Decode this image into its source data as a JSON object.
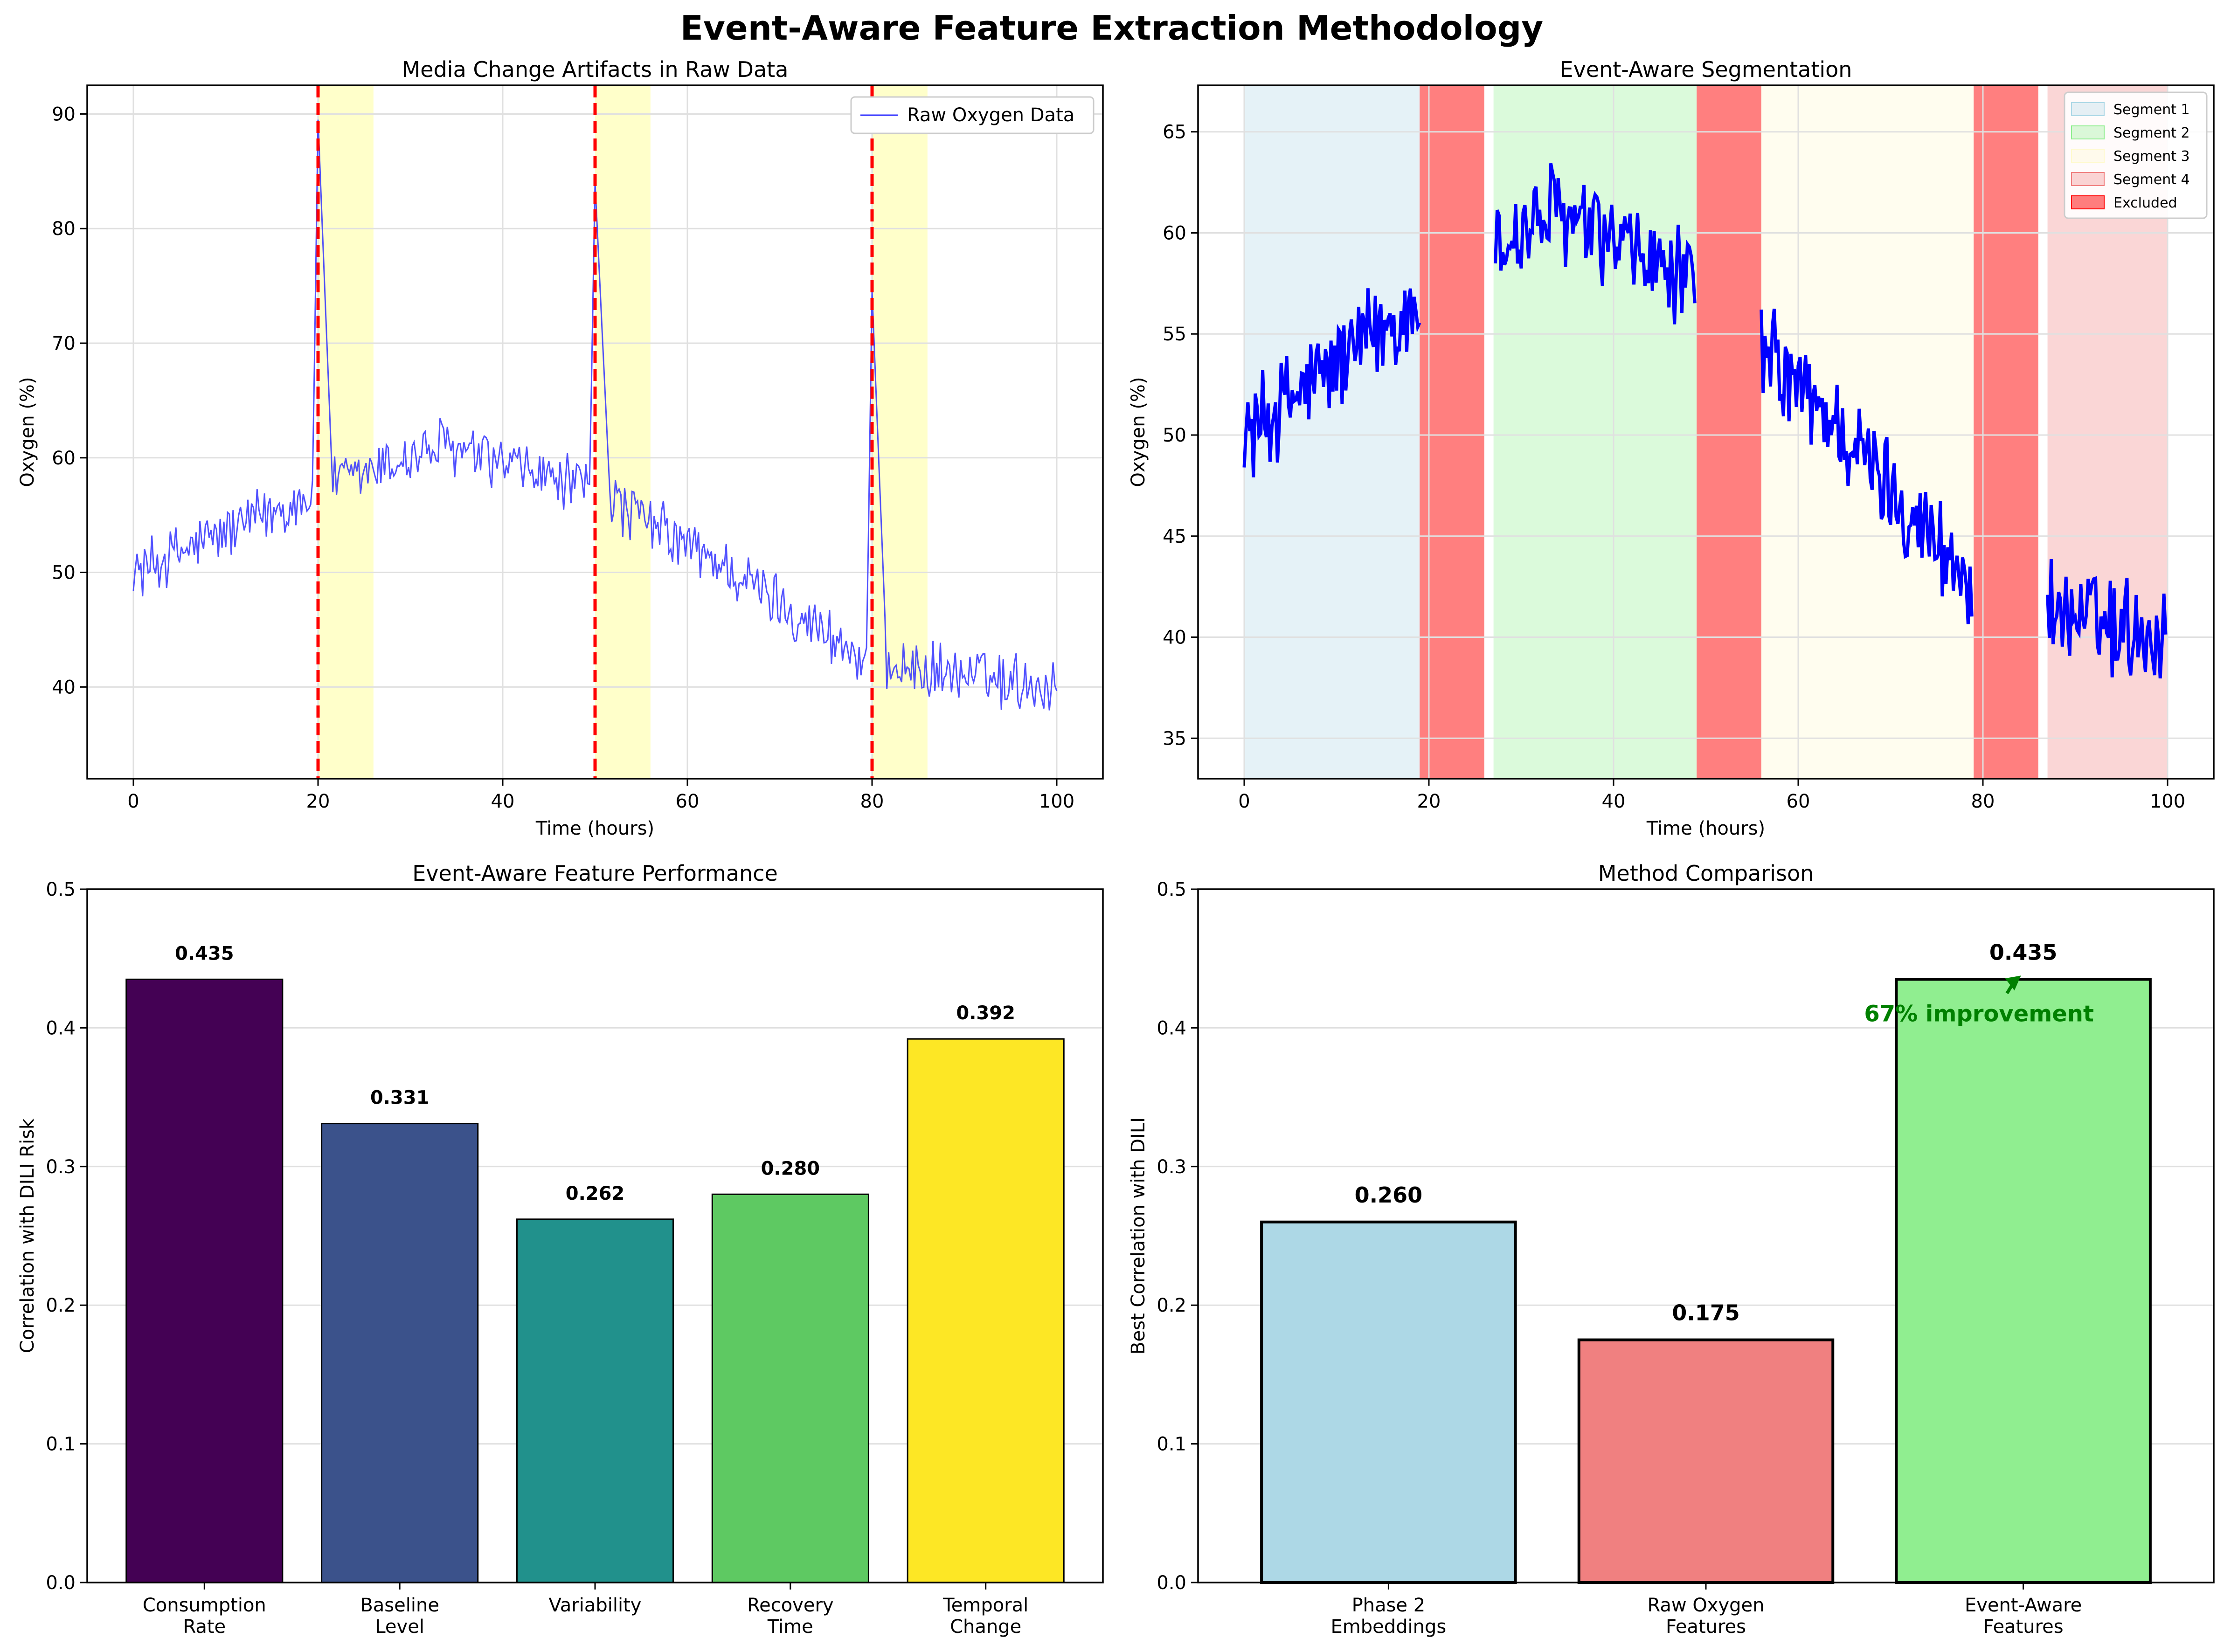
{
  "figure": {
    "title": "Event-Aware Feature Extraction Methodology"
  },
  "chart_data": [
    {
      "id": "raw",
      "type": "line",
      "title": "Media Change Artifacts in Raw Data",
      "xlabel": "Time (hours)",
      "ylabel": "Oxygen (%)",
      "xlim": [
        -5,
        105
      ],
      "ylim": [
        32,
        92.5
      ],
      "xticks": [
        0,
        20,
        40,
        60,
        80,
        100
      ],
      "yticks": [
        40,
        50,
        60,
        70,
        80,
        90
      ],
      "grid": true,
      "legend": {
        "position": "top-right",
        "entries": [
          "Raw Oxygen Data"
        ]
      },
      "series": [
        {
          "name": "Raw Oxygen Data",
          "color": "#3333ff"
        }
      ],
      "media_change_times": [
        20,
        50,
        80
      ],
      "post_event_windows": [
        [
          20,
          26
        ],
        [
          50,
          56
        ],
        [
          80,
          86
        ]
      ],
      "trend_anchors": [
        [
          0,
          50
        ],
        [
          20,
          57
        ],
        [
          33,
          61
        ],
        [
          50,
          57
        ],
        [
          65,
          50
        ],
        [
          80,
          42
        ],
        [
          100,
          40
        ]
      ],
      "spike_peaks": [
        [
          20,
          89.5
        ],
        [
          50,
          84
        ],
        [
          80,
          74.5
        ]
      ],
      "noise_amplitude": 3.0,
      "sample_interval": 0.2
    },
    {
      "id": "seg",
      "type": "line",
      "title": "Event-Aware Segmentation",
      "xlabel": "Time (hours)",
      "ylabel": "Oxygen (%)",
      "xlim": [
        -5,
        105
      ],
      "ylim": [
        33,
        67.3
      ],
      "xticks": [
        0,
        20,
        40,
        60,
        80,
        100
      ],
      "yticks": [
        35,
        40,
        45,
        50,
        55,
        60,
        65
      ],
      "grid": true,
      "legend": {
        "position": "top-right",
        "entries": [
          "Segment 1",
          "Segment 2",
          "Segment 3",
          "Segment 4",
          "Excluded"
        ]
      },
      "segments": [
        {
          "name": "Segment 1",
          "range": [
            0,
            19
          ],
          "color": "#add8e6"
        },
        {
          "name": "Segment 2",
          "range": [
            27,
            49
          ],
          "color": "#90ee90"
        },
        {
          "name": "Segment 3",
          "range": [
            56,
            79
          ],
          "color": "#fffacd"
        },
        {
          "name": "Segment 4",
          "range": [
            87,
            100
          ],
          "color": "#f08080"
        }
      ],
      "excluded": {
        "name": "Excluded",
        "ranges": [
          [
            19,
            26
          ],
          [
            49,
            56
          ],
          [
            79,
            86
          ]
        ],
        "color": "#ff0000"
      },
      "series": [
        {
          "name": "Oxygen",
          "color": "#0000ff"
        }
      ]
    },
    {
      "id": "perf",
      "type": "bar",
      "title": "Event-Aware Feature Performance",
      "xlabel": "",
      "ylabel": "Correlation with DILI Risk",
      "ylim": [
        0,
        0.5
      ],
      "yticks": [
        "0.0",
        "0.1",
        "0.2",
        "0.3",
        "0.4",
        "0.5"
      ],
      "grid": true,
      "categories": [
        [
          "Consumption",
          "Rate"
        ],
        [
          "Baseline",
          "Level"
        ],
        [
          "Variability"
        ],
        [
          "Recovery",
          "Time"
        ],
        [
          "Temporal",
          "Change"
        ]
      ],
      "values": [
        0.435,
        0.331,
        0.262,
        0.28,
        0.392
      ],
      "value_labels": [
        "0.435",
        "0.331",
        "0.262",
        "0.280",
        "0.392"
      ],
      "colors": [
        "#440154",
        "#3b528b",
        "#21918c",
        "#5ec962",
        "#fde725"
      ]
    },
    {
      "id": "cmp",
      "type": "bar",
      "title": "Method Comparison",
      "xlabel": "",
      "ylabel": "Best Correlation with DILI",
      "ylim": [
        0,
        0.5
      ],
      "yticks": [
        "0.0",
        "0.1",
        "0.2",
        "0.3",
        "0.4",
        "0.5"
      ],
      "grid": true,
      "categories": [
        [
          "Phase 2",
          "Embeddings"
        ],
        [
          "Raw Oxygen",
          "Features"
        ],
        [
          "Event-Aware",
          "Features"
        ]
      ],
      "values": [
        0.26,
        0.175,
        0.435
      ],
      "value_labels": [
        "0.260",
        "0.175",
        "0.435"
      ],
      "colors": [
        "#add8e6",
        "#f08080",
        "#90ee90"
      ],
      "annotation": {
        "text": "67% improvement",
        "target_category": 2,
        "color": "#008000"
      }
    }
  ]
}
